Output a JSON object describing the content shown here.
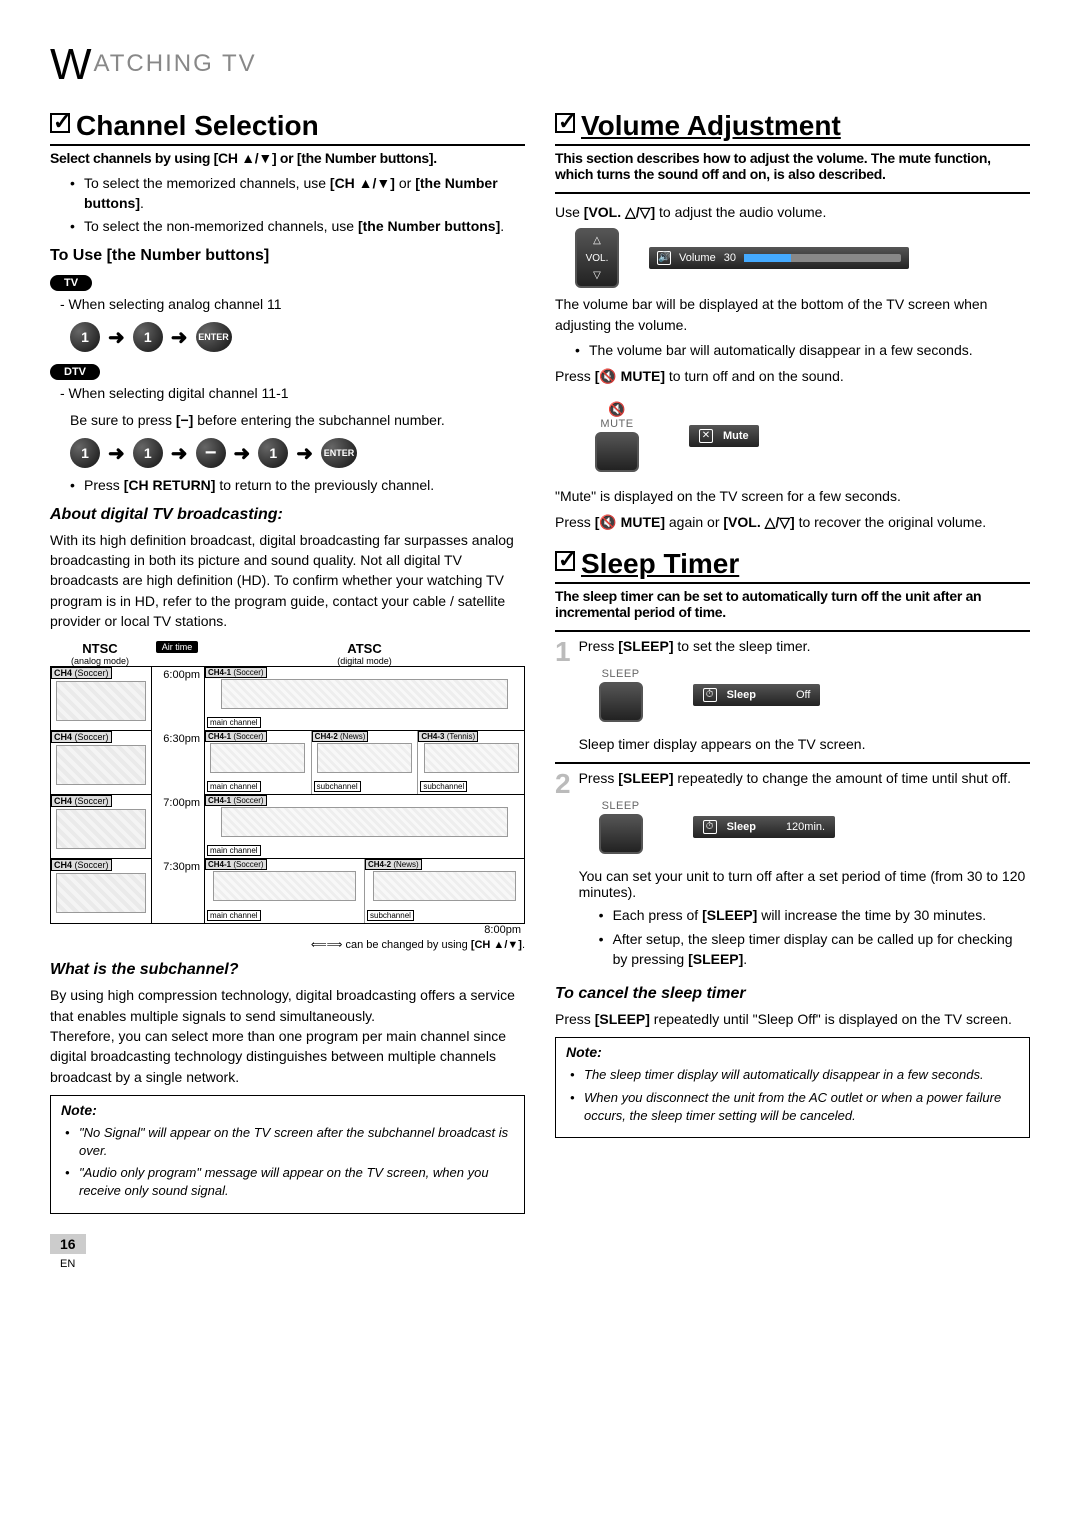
{
  "header": {
    "prefix": "W",
    "rest": "ATCHING   TV"
  },
  "pageNumber": "16",
  "lang": "EN",
  "left": {
    "h_channel": "Channel Selection",
    "subtitle": "Select channels by using [CH ▲/▼] or [the Number buttons].",
    "bullets1": [
      "To select the memorized channels, use [CH ▲/▼] or [the Number buttons].",
      "To select the non-memorized channels, use [the Number buttons]."
    ],
    "use_number": "To Use [the Number buttons]",
    "tv": "TV",
    "analog_line": "-  When selecting analog channel 11",
    "dtv": "DTV",
    "digital_line1": "-  When selecting digital channel 11-1",
    "digital_line2": "Be sure to press [−] before entering the subchannel number.",
    "bullet_return": "Press [CH RETURN] to return to the previously channel.",
    "about_title": "About digital TV broadcasting:",
    "about_body": "With its high definition broadcast, digital broadcasting far surpasses analog broadcasting in both its picture and sound quality. Not all digital TV broadcasts are high definition (HD). To confirm whether your watching TV program is in HD, refer to the program guide, contact your cable / satellite provider or local TV stations.",
    "ntsc": "NTSC",
    "ntsc_mode": "(analog mode)",
    "atsc": "ATSC",
    "atsc_mode": "(digital mode)",
    "airtime": "Air time",
    "times": [
      "6:00pm",
      "6:30pm",
      "7:00pm",
      "7:30pm",
      "8:00pm"
    ],
    "ntsc_rows": [
      "CH4 (Soccer)",
      "CH4 (Soccer)",
      "CH4 (Soccer)",
      "CH4 (Soccer)"
    ],
    "atsc_rows": [
      [
        {
          "l": "CH4-1 (Soccer)",
          "t": "main channel"
        }
      ],
      [
        {
          "l": "CH4-1 (Soccer)",
          "t": "main channel"
        },
        {
          "l": "CH4-2 (News)",
          "t": "subchannel"
        },
        {
          "l": "CH4-3 (Tennis)",
          "t": "subchannel"
        }
      ],
      [
        {
          "l": "CH4-1 (Soccer)",
          "t": "main channel"
        }
      ],
      [
        {
          "l": "CH4-1 (Soccer)",
          "t": "main channel"
        },
        {
          "l": "CH4-2 (News)",
          "t": "subchannel"
        }
      ]
    ],
    "grid_foot": "⟸⟹ can be changed by using [CH ▲/▼].",
    "what_sub": "What is the subchannel?",
    "what_sub_body": "By using high compression technology, digital broadcasting offers a service that enables multiple signals to send simultaneously.\nTherefore, you can select more than one program per main channel since digital broadcasting technology distinguishes between multiple channels broadcast by a single network.",
    "note": "Note:",
    "note_items": [
      "\"No Signal\" will appear on the TV screen after the subchannel broadcast is over.",
      "\"Audio only program\" message will appear on the TV screen, when you receive only sound signal."
    ]
  },
  "right": {
    "h_volume": "Volume Adjustment",
    "vol_sub": "This section describes how to adjust the volume. The mute function, which turns the sound off and on, is also described.",
    "vol_use": "Use [VOL. △/▽] to adjust the audio volume.",
    "vol_label": "VOL.",
    "osd_volume": "Volume",
    "osd_vol_val": "30",
    "vol_after": "The volume bar will be displayed at the bottom of the TV screen when adjusting the volume.",
    "vol_bullet": "The volume bar will automatically disappear in a few seconds.",
    "mute_press": "Press [🔇 MUTE] to turn off and on the sound.",
    "mute_label": "MUTE",
    "osd_mute": "Mute",
    "mute_after": "\"Mute\" is displayed on the TV screen for a few seconds.",
    "mute_recover": "Press [🔇 MUTE] again or [VOL. △/▽] to recover the original volume.",
    "h_sleep": "Sleep Timer",
    "sleep_sub": "The sleep timer can be set to automatically turn off the unit after an incremental period of time.",
    "step1": "Press [SLEEP] to set the sleep timer.",
    "sleep_key": "SLEEP",
    "osd_sleep": "Sleep",
    "osd_sleep_off": "Off",
    "step1_after": "Sleep timer display appears on the TV screen.",
    "step2": "Press [SLEEP] repeatedly to change the amount of time until shut off.",
    "osd_sleep2": "Sleep",
    "osd_sleep_120": "120min.",
    "step2_after": "You can set your unit to turn off after a set period of time (from 30 to 120 minutes).",
    "sleep_bullets": [
      "Each press of [SLEEP] will increase the time by 30 minutes.",
      "After setup, the sleep timer display can be called up for checking by pressing [SLEEP]."
    ],
    "cancel_title": "To cancel the sleep timer",
    "cancel_body": "Press [SLEEP] repeatedly until \"Sleep Off\" is displayed on the TV screen.",
    "note": "Note:",
    "note_items": [
      "The sleep timer display will automatically disappear in a few seconds.",
      "When you disconnect the unit from the AC outlet or when a power failure occurs, the sleep timer setting will be canceled."
    ]
  },
  "btn": {
    "one": "1",
    "minus": "−",
    "enter": "ENTER"
  }
}
